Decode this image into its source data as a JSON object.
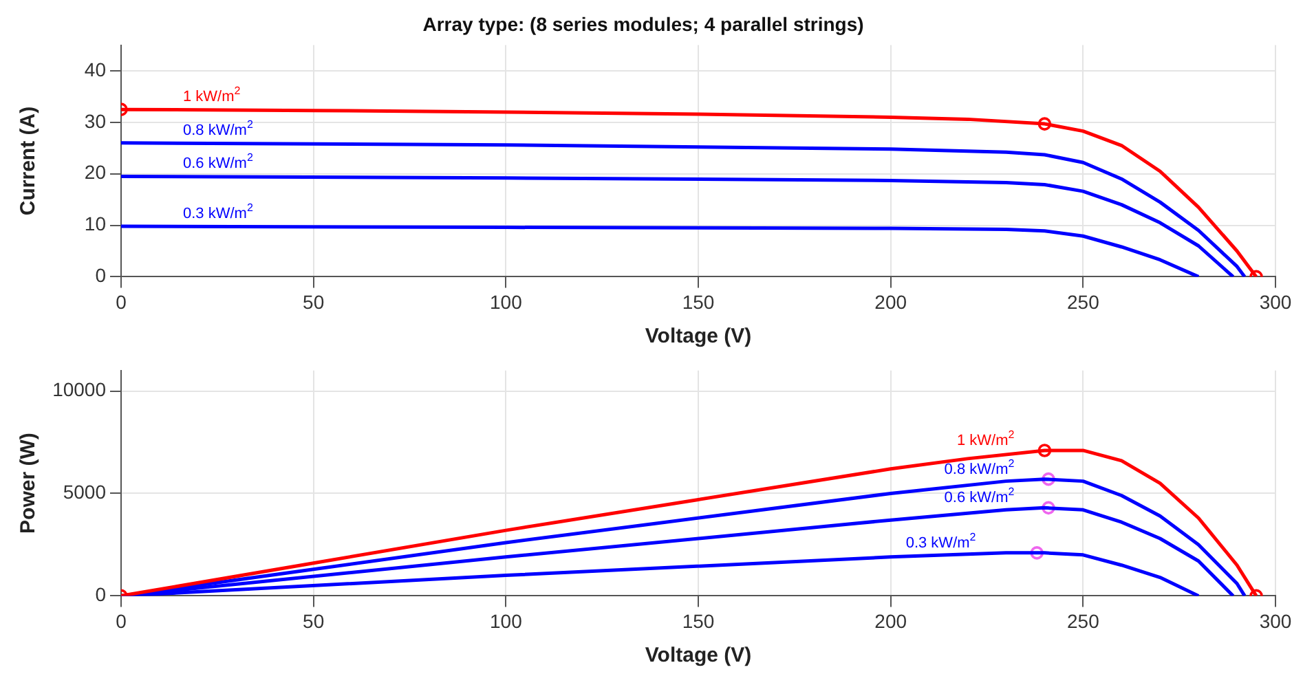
{
  "chart_data": [
    {
      "type": "line",
      "title": "Array type: (8 series modules; 4 parallel strings)",
      "xlabel": "Voltage (V)",
      "ylabel": "Current (A)",
      "xlim": [
        0,
        300
      ],
      "xticks": [
        0,
        50,
        100,
        150,
        200,
        250,
        300
      ],
      "ylim": [
        0,
        45
      ],
      "yticks": [
        0,
        10,
        20,
        30,
        40
      ],
      "grid": true,
      "legend": false,
      "line_style": "solid",
      "marker": "none",
      "series": [
        {
          "name": "1 kW/m$^{2}$",
          "color": "#ff0000",
          "x": [
            0,
            50,
            100,
            150,
            200,
            220,
            240,
            250,
            260,
            270,
            280,
            290,
            295
          ],
          "values": [
            32.5,
            32.3,
            32.0,
            31.6,
            31.0,
            30.6,
            29.7,
            28.3,
            25.5,
            20.5,
            13.5,
            5,
            0
          ]
        },
        {
          "name": "0.8 kW/m$^{2}$",
          "color": "#0000ff",
          "x": [
            0,
            100,
            200,
            230,
            240,
            250,
            260,
            270,
            280,
            290,
            292
          ],
          "values": [
            26,
            25.6,
            24.8,
            24.2,
            23.7,
            22.2,
            19,
            14.5,
            9,
            2,
            0
          ]
        },
        {
          "name": "0.6 kW/m$^{2}$",
          "color": "#0000ff",
          "x": [
            0,
            100,
            200,
            230,
            240,
            250,
            260,
            270,
            280,
            289
          ],
          "values": [
            19.5,
            19.2,
            18.7,
            18.3,
            17.9,
            16.6,
            14,
            10.5,
            6,
            0
          ]
        },
        {
          "name": "0.3 kW/m$^{2}$",
          "color": "#0000ff",
          "x": [
            0,
            100,
            200,
            230,
            240,
            250,
            260,
            270,
            280
          ],
          "values": [
            9.8,
            9.6,
            9.4,
            9.2,
            8.9,
            7.9,
            5.8,
            3.3,
            0
          ]
        },
        {
          "type": "scatter",
          "marker": "circle",
          "color": "#ff0000",
          "x": [
            0,
            240,
            295
          ],
          "values": [
            32.5,
            29.7,
            0
          ]
        }
      ]
    },
    {
      "type": "line",
      "xlabel": "Voltage (V)",
      "ylabel": "Power (W)",
      "xlim": [
        0,
        300
      ],
      "xticks": [
        0,
        50,
        100,
        150,
        200,
        250,
        300
      ],
      "ylim": [
        0,
        11000
      ],
      "yticks": [
        0,
        5000,
        10000
      ],
      "grid": true,
      "legend": false,
      "line_style": "solid",
      "marker": "none",
      "series": [
        {
          "name": "1 kW/m$^{2}$",
          "color": "#ff0000",
          "x": [
            0,
            50,
            100,
            150,
            200,
            220,
            240,
            250,
            260,
            270,
            280,
            290,
            295
          ],
          "values": [
            0,
            1600,
            3200,
            4700,
            6200,
            6700,
            7100,
            7100,
            6600,
            5500,
            3800,
            1500,
            0
          ]
        },
        {
          "name": "0.8 kW/m$^{2}$",
          "color": "#0000ff",
          "x": [
            0,
            100,
            200,
            230,
            240,
            250,
            260,
            270,
            280,
            290,
            292
          ],
          "values": [
            0,
            2600,
            5000,
            5600,
            5700,
            5600,
            4900,
            3900,
            2500,
            600,
            0
          ]
        },
        {
          "name": "0.6 kW/m$^{2}$",
          "color": "#0000ff",
          "x": [
            0,
            100,
            200,
            230,
            240,
            250,
            260,
            270,
            280,
            289
          ],
          "values": [
            0,
            1900,
            3700,
            4200,
            4300,
            4200,
            3600,
            2800,
            1700,
            0
          ]
        },
        {
          "name": "0.3 kW/m$^{2}$",
          "color": "#0000ff",
          "x": [
            0,
            100,
            200,
            230,
            240,
            250,
            260,
            270,
            280
          ],
          "values": [
            0,
            1000,
            1900,
            2100,
            2100,
            2000,
            1500,
            900,
            0
          ]
        },
        {
          "type": "scatter",
          "marker": "circle",
          "color": "#ff0000",
          "x": [
            0,
            240,
            295
          ],
          "values": [
            0,
            7100,
            0
          ]
        },
        {
          "type": "scatter",
          "marker": "circle",
          "color": "#ee66ee",
          "x": [
            241,
            241,
            238
          ],
          "values": [
            5700,
            4300,
            2100
          ]
        }
      ]
    }
  ]
}
